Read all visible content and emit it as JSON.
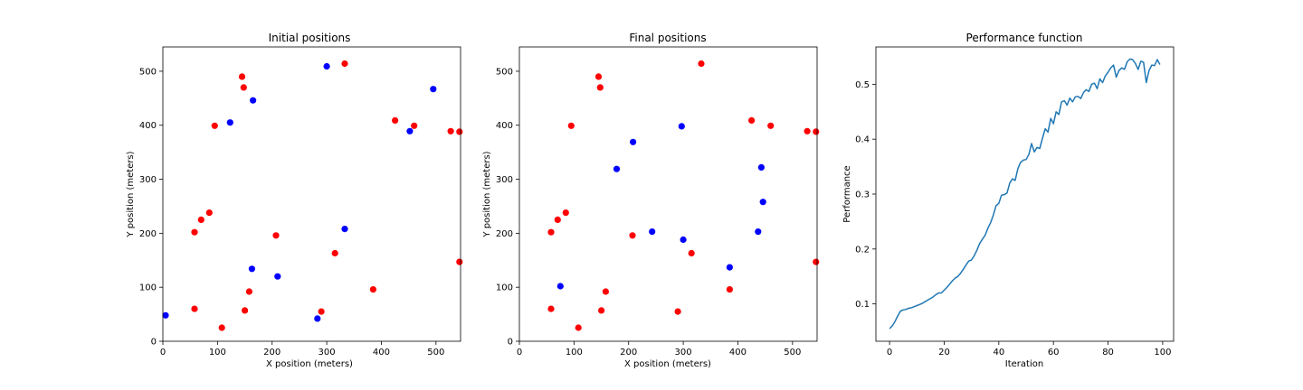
{
  "colors": {
    "red_points": "#ff0000",
    "blue_points": "#0000ff",
    "line": "#1f77b4"
  },
  "chart_data": [
    {
      "type": "scatter",
      "title": "Initial positions",
      "xlabel": "X position (meters)",
      "ylabel": "Y position (meters)",
      "xlim": [
        0,
        545
      ],
      "ylim": [
        0,
        545
      ],
      "xticks": [
        0,
        100,
        200,
        300,
        400,
        500
      ],
      "yticks": [
        0,
        100,
        200,
        300,
        400,
        500
      ],
      "series": [
        {
          "color": "#ff0000",
          "points": [
            [
              333,
              514
            ],
            [
              145,
              490
            ],
            [
              148,
              470
            ],
            [
              95,
              399
            ],
            [
              425,
              409
            ],
            [
              460,
              399
            ],
            [
              527,
              389
            ],
            [
              543,
              388
            ],
            [
              85,
              238
            ],
            [
              70,
              225
            ],
            [
              58,
              202
            ],
            [
              207,
              196
            ],
            [
              315,
              163
            ],
            [
              543,
              147
            ],
            [
              158,
              92
            ],
            [
              385,
              96
            ],
            [
              58,
              60
            ],
            [
              150,
              57
            ],
            [
              290,
              55
            ],
            [
              108,
              25
            ]
          ]
        },
        {
          "color": "#0000ff",
          "points": [
            [
              300,
              509
            ],
            [
              495,
              467
            ],
            [
              165,
              446
            ],
            [
              123,
              405
            ],
            [
              452,
              389
            ],
            [
              333,
              208
            ],
            [
              163,
              134
            ],
            [
              210,
              120
            ],
            [
              283,
              42
            ],
            [
              5,
              48
            ]
          ]
        }
      ]
    },
    {
      "type": "scatter",
      "title": "Final positions",
      "xlabel": "X position (meters)",
      "ylabel": "Y position (meters)",
      "xlim": [
        0,
        545
      ],
      "ylim": [
        0,
        545
      ],
      "xticks": [
        0,
        100,
        200,
        300,
        400,
        500
      ],
      "yticks": [
        0,
        100,
        200,
        300,
        400,
        500
      ],
      "series": [
        {
          "color": "#ff0000",
          "points": [
            [
              333,
              514
            ],
            [
              145,
              490
            ],
            [
              148,
              470
            ],
            [
              95,
              399
            ],
            [
              425,
              409
            ],
            [
              460,
              399
            ],
            [
              527,
              389
            ],
            [
              543,
              388
            ],
            [
              85,
              238
            ],
            [
              70,
              225
            ],
            [
              58,
              202
            ],
            [
              207,
              196
            ],
            [
              315,
              163
            ],
            [
              543,
              147
            ],
            [
              158,
              92
            ],
            [
              385,
              96
            ],
            [
              58,
              60
            ],
            [
              150,
              57
            ],
            [
              290,
              55
            ],
            [
              108,
              25
            ]
          ]
        },
        {
          "color": "#0000ff",
          "points": [
            [
              297,
              398
            ],
            [
              208,
              369
            ],
            [
              178,
              319
            ],
            [
              443,
              322
            ],
            [
              446,
              258
            ],
            [
              243,
              203
            ],
            [
              437,
              203
            ],
            [
              300,
              188
            ],
            [
              385,
              137
            ],
            [
              75,
              102
            ]
          ]
        }
      ]
    },
    {
      "type": "line",
      "title": "Performance function",
      "xlabel": "Iteration",
      "ylabel": "Performance",
      "xlim": [
        -5,
        104
      ],
      "ylim": [
        0.032,
        0.568
      ],
      "xticks": [
        0,
        20,
        40,
        60,
        80,
        100
      ],
      "yticks": [
        0.1,
        0.2,
        0.3,
        0.4,
        0.5
      ],
      "series": [
        {
          "color": "#1f77b4",
          "x": [
            0,
            1,
            2,
            3,
            4,
            5,
            6,
            7,
            8,
            9,
            10,
            11,
            12,
            13,
            14,
            15,
            16,
            17,
            18,
            19,
            20,
            21,
            22,
            23,
            24,
            25,
            26,
            27,
            28,
            29,
            30,
            31,
            32,
            33,
            34,
            35,
            36,
            37,
            38,
            39,
            40,
            41,
            42,
            43,
            44,
            45,
            46,
            47,
            48,
            49,
            50,
            51,
            52,
            53,
            54,
            55,
            56,
            57,
            58,
            59,
            60,
            61,
            62,
            63,
            64,
            65,
            66,
            67,
            68,
            69,
            70,
            71,
            72,
            73,
            74,
            75,
            76,
            77,
            78,
            79,
            80,
            81,
            82,
            83,
            84,
            85,
            86,
            87,
            88,
            89,
            90,
            91,
            92,
            93,
            94,
            95,
            96,
            97,
            98,
            99
          ],
          "y": [
            0.055,
            0.06,
            0.068,
            0.078,
            0.087,
            0.089,
            0.09,
            0.092,
            0.093,
            0.095,
            0.097,
            0.099,
            0.101,
            0.104,
            0.107,
            0.11,
            0.113,
            0.117,
            0.12,
            0.12,
            0.125,
            0.13,
            0.136,
            0.142,
            0.147,
            0.15,
            0.156,
            0.163,
            0.171,
            0.178,
            0.18,
            0.188,
            0.198,
            0.21,
            0.218,
            0.225,
            0.238,
            0.248,
            0.262,
            0.279,
            0.283,
            0.298,
            0.299,
            0.302,
            0.32,
            0.328,
            0.325,
            0.347,
            0.358,
            0.362,
            0.363,
            0.372,
            0.392,
            0.377,
            0.385,
            0.383,
            0.402,
            0.419,
            0.413,
            0.438,
            0.428,
            0.45,
            0.445,
            0.468,
            0.47,
            0.462,
            0.475,
            0.468,
            0.477,
            0.478,
            0.474,
            0.485,
            0.49,
            0.487,
            0.5,
            0.502,
            0.492,
            0.51,
            0.503,
            0.515,
            0.522,
            0.53,
            0.535,
            0.513,
            0.525,
            0.53,
            0.527,
            0.541,
            0.546,
            0.545,
            0.538,
            0.527,
            0.542,
            0.54,
            0.503,
            0.525,
            0.535,
            0.534,
            0.545,
            0.536
          ]
        }
      ]
    }
  ]
}
